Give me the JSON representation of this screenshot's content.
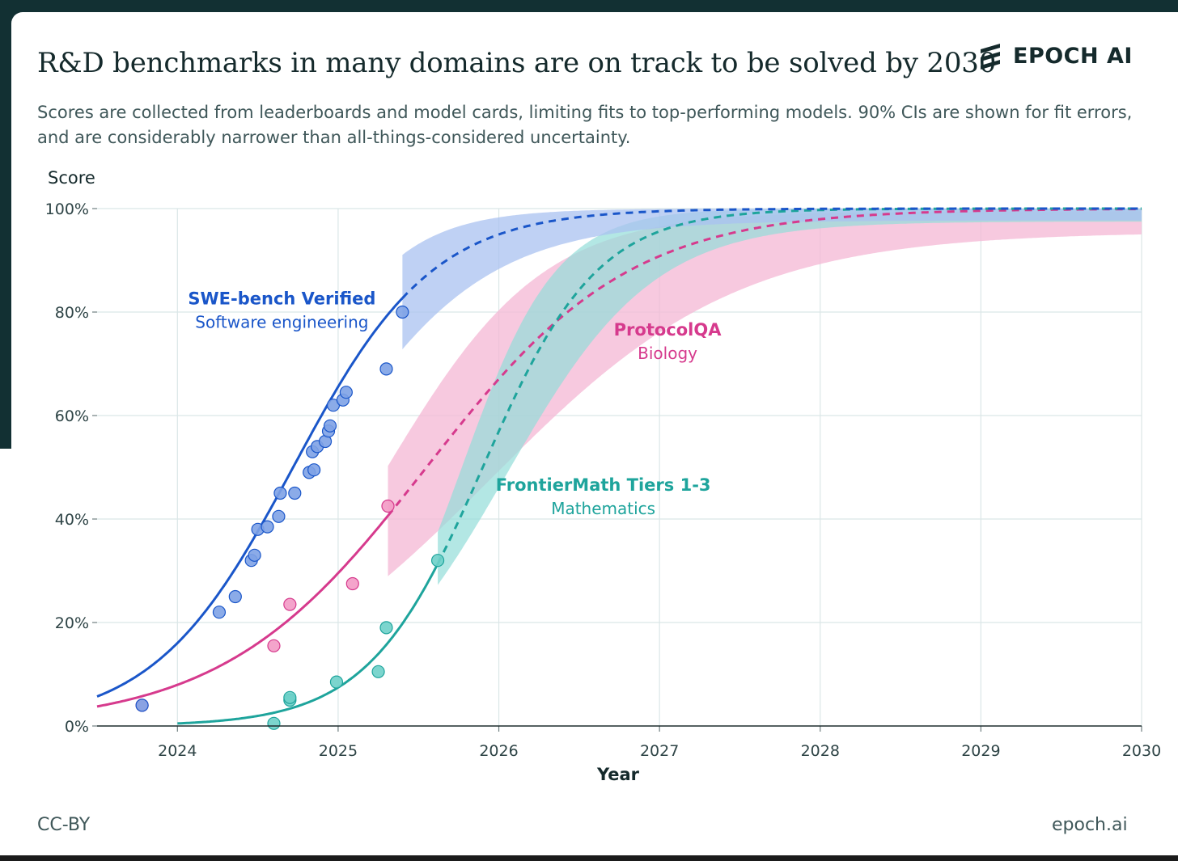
{
  "title": "R&D benchmarks in many domains are on track to be solved by 2030",
  "subtitle": "Scores are collected from leaderboards and model cards, limiting fits to top-performing models. 90% CIs are shown for fit errors, and are considerably narrower than all-things-considered uncertainty.",
  "logo": {
    "text": "EPOCH AI",
    "icon": "epoch-stripes-icon"
  },
  "footer": {
    "license": "CC-BY",
    "site": "epoch.ai"
  },
  "colors": {
    "swe": "#1a56c9",
    "swe_band": "#a9c2f0",
    "swe_point": "#7ea2e6",
    "protocol": "#d63a8d",
    "protocol_band": "#f4b7d4",
    "protocol_point": "#f39ac5",
    "frontier": "#1ea49c",
    "frontier_band": "#93ddd8",
    "frontier_point": "#6ed0c9",
    "grid": "#dbe6e7",
    "axis": "#1e2d2e",
    "text": "#2e4446"
  },
  "chart_data": {
    "type": "line",
    "xlabel": "Year",
    "ylabel": "Score",
    "xlim": [
      2023.5,
      2030
    ],
    "ylim": [
      0,
      100
    ],
    "x_ticks": [
      {
        "value": 2024,
        "label": "2024"
      },
      {
        "value": 2025,
        "label": "2025"
      },
      {
        "value": 2026,
        "label": "2026"
      },
      {
        "value": 2027,
        "label": "2027"
      },
      {
        "value": 2028,
        "label": "2028"
      },
      {
        "value": 2029,
        "label": "2029"
      },
      {
        "value": 2030,
        "label": "2030"
      }
    ],
    "y_ticks": [
      {
        "value": 0,
        "label": "0%"
      },
      {
        "value": 20,
        "label": "20%"
      },
      {
        "value": 40,
        "label": "40%"
      },
      {
        "value": 60,
        "label": "60%"
      },
      {
        "value": 80,
        "label": "80%"
      },
      {
        "value": 100,
        "label": "100%"
      }
    ],
    "grid": true,
    "series": [
      {
        "key": "swe",
        "name": "SWE-bench Verified",
        "domain": "Software engineering",
        "label_anchor": [
          2024.65,
          81.5
        ],
        "fit_start": 2023.5,
        "fit_last_obs": 2025.4,
        "fit": {
          "L": 100,
          "k": 2.3,
          "x0": 2024.72
        },
        "band_start": 2025.4,
        "band": {
          "lo_L": 97.7,
          "lo_k": 1.95,
          "lo_x0": 2024.85,
          "hi_L": 100,
          "hi_k": 2.9,
          "hi_x0": 2024.6
        },
        "points": [
          [
            2023.78,
            4
          ],
          [
            2024.26,
            22
          ],
          [
            2024.36,
            25
          ],
          [
            2024.46,
            32
          ],
          [
            2024.48,
            33
          ],
          [
            2024.5,
            38
          ],
          [
            2024.56,
            38.5
          ],
          [
            2024.63,
            40.5
          ],
          [
            2024.64,
            45
          ],
          [
            2024.73,
            45
          ],
          [
            2024.82,
            49
          ],
          [
            2024.84,
            53
          ],
          [
            2024.85,
            49.5
          ],
          [
            2024.87,
            54
          ],
          [
            2024.92,
            55
          ],
          [
            2024.94,
            57
          ],
          [
            2024.95,
            58
          ],
          [
            2024.97,
            62
          ],
          [
            2025.03,
            63
          ],
          [
            2025.05,
            64.5
          ],
          [
            2025.3,
            69
          ],
          [
            2025.4,
            80
          ]
        ]
      },
      {
        "key": "protocol",
        "name": "ProtocolQA",
        "domain": "Biology",
        "label_anchor": [
          2027.05,
          75.5
        ],
        "fit_start": 2023.5,
        "fit_last_obs": 2025.31,
        "fit": {
          "L": 100,
          "k": 1.58,
          "x0": 2025.55
        },
        "band_start": 2025.31,
        "band": {
          "lo_L": 95.5,
          "lo_k": 1.3,
          "lo_x0": 2025.95,
          "hi_L": 99.5,
          "hi_k": 2.05,
          "hi_x0": 2025.3
        },
        "points": [
          [
            2023.78,
            4
          ],
          [
            2024.6,
            15.5
          ],
          [
            2024.7,
            23.5
          ],
          [
            2025.09,
            27.5
          ],
          [
            2025.31,
            42.5
          ]
        ]
      },
      {
        "key": "frontier",
        "name": "FrontierMath Tiers 1-3",
        "domain": "Mathematics",
        "label_anchor": [
          2026.65,
          45.5
        ],
        "fit_start": 2024.0,
        "fit_last_obs": 2025.62,
        "fit": {
          "L": 100,
          "k": 2.8,
          "x0": 2025.9
        },
        "band_start": 2025.62,
        "band": {
          "lo_L": 97.5,
          "lo_k": 2.2,
          "lo_x0": 2026.05,
          "hi_L": 100,
          "hi_k": 3.4,
          "hi_x0": 2025.77
        },
        "points": [
          [
            2024.6,
            0.5
          ],
          [
            2024.7,
            5
          ],
          [
            2024.7,
            5.5
          ],
          [
            2024.99,
            8.5
          ],
          [
            2025.25,
            10.5
          ],
          [
            2025.3,
            19
          ],
          [
            2025.62,
            32
          ]
        ]
      }
    ]
  }
}
